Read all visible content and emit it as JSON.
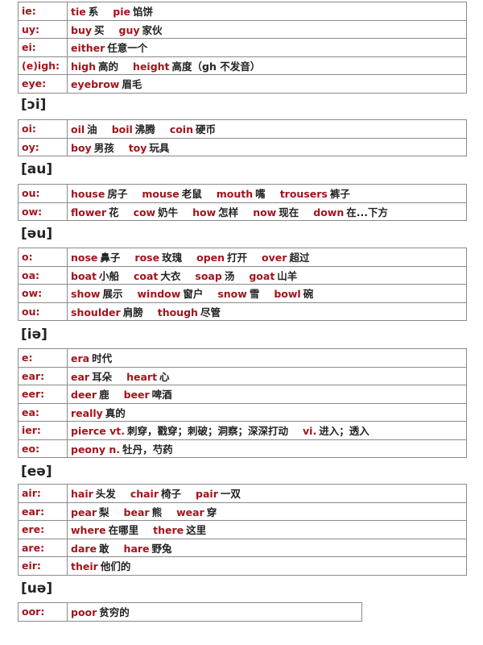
{
  "accent_color": "#a3141c",
  "sections": [
    {
      "heading": "",
      "rows": [
        {
          "key": "ie:",
          "words": [
            {
              "en": "tie",
              "zh": "系"
            },
            {
              "en": "pie",
              "zh": "馅饼"
            }
          ]
        },
        {
          "key": "uy:",
          "words": [
            {
              "en": "buy",
              "zh": "买"
            },
            {
              "en": "guy",
              "zh": "家伙"
            }
          ]
        },
        {
          "key": "ei:",
          "words": [
            {
              "en": "either",
              "zh": "任意一个"
            }
          ]
        },
        {
          "key": "(e)igh:",
          "words": [
            {
              "en": "high",
              "zh": "高的"
            },
            {
              "en": "height",
              "zh": "高度（gh 不发音）"
            }
          ]
        },
        {
          "key": "eye:",
          "words": [
            {
              "en": "eyebrow",
              "zh": "眉毛"
            }
          ]
        }
      ]
    },
    {
      "heading": "[ɔi]",
      "rows": [
        {
          "key": "oi:",
          "words": [
            {
              "en": "oil",
              "zh": "油"
            },
            {
              "en": "boil",
              "zh": "沸腾"
            },
            {
              "en": "coin",
              "zh": "硬币"
            }
          ]
        },
        {
          "key": "oy:",
          "words": [
            {
              "en": "boy",
              "zh": "男孩"
            },
            {
              "en": "toy",
              "zh": "玩具"
            }
          ]
        }
      ]
    },
    {
      "heading": "[au]",
      "rows": [
        {
          "key": "ou:",
          "words": [
            {
              "en": "house",
              "zh": "房子"
            },
            {
              "en": "mouse",
              "zh": "老鼠"
            },
            {
              "en": "mouth",
              "zh": "嘴"
            },
            {
              "en": "trousers",
              "zh": "裤子"
            }
          ]
        },
        {
          "key": "ow:",
          "words": [
            {
              "en": "flower",
              "zh": "花"
            },
            {
              "en": "cow",
              "zh": "奶牛"
            },
            {
              "en": "how",
              "zh": "怎样"
            },
            {
              "en": "now",
              "zh": "现在"
            },
            {
              "en": "down",
              "zh": "在...下方"
            }
          ]
        }
      ]
    },
    {
      "heading": "[əu]",
      "rows": [
        {
          "key": "o:",
          "words": [
            {
              "en": "nose",
              "zh": "鼻子"
            },
            {
              "en": "rose",
              "zh": "玫瑰"
            },
            {
              "en": "open",
              "zh": "打开"
            },
            {
              "en": "over",
              "zh": "超过"
            }
          ]
        },
        {
          "key": "oa:",
          "words": [
            {
              "en": "boat",
              "zh": "小船"
            },
            {
              "en": "coat",
              "zh": "大衣"
            },
            {
              "en": "soap",
              "zh": "汤"
            },
            {
              "en": "goat",
              "zh": "山羊"
            }
          ]
        },
        {
          "key": "ow:",
          "words": [
            {
              "en": "show",
              "zh": "展示"
            },
            {
              "en": "window",
              "zh": "窗户"
            },
            {
              "en": "snow",
              "zh": "雪"
            },
            {
              "en": "bowl",
              "zh": "碗"
            }
          ]
        },
        {
          "key": "ou:",
          "words": [
            {
              "en": "shoulder",
              "zh": "肩膀"
            },
            {
              "en": "though",
              "zh": "尽管"
            }
          ]
        }
      ]
    },
    {
      "heading": "[iə]",
      "rows": [
        {
          "key": "e:",
          "words": [
            {
              "en": "era",
              "zh": "时代"
            }
          ]
        },
        {
          "key": "ear:",
          "words": [
            {
              "en": "ear",
              "zh": "耳朵"
            },
            {
              "en": "heart",
              "zh": "心"
            }
          ]
        },
        {
          "key": "eer:",
          "words": [
            {
              "en": "deer",
              "zh": "鹿"
            },
            {
              "en": "beer",
              "zh": "啤酒"
            }
          ]
        },
        {
          "key": "ea:",
          "words": [
            {
              "en": "really",
              "zh": "真的"
            }
          ]
        },
        {
          "key": "ier:",
          "words": [
            {
              "en": "pierce vt.",
              "zh": "刺穿，戳穿；刺破；洞察；深深打动"
            },
            {
              "en": "vi.",
              "zh": "进入；透入"
            }
          ]
        },
        {
          "key": "eo:",
          "words": [
            {
              "en": "peony n.",
              "zh": "牡丹，芍药"
            }
          ]
        }
      ]
    },
    {
      "heading": "[eə]",
      "rows": [
        {
          "key": "air:",
          "words": [
            {
              "en": "hair",
              "zh": "头发"
            },
            {
              "en": "chair",
              "zh": "椅子"
            },
            {
              "en": "pair",
              "zh": "一双"
            }
          ]
        },
        {
          "key": "ear:",
          "words": [
            {
              "en": "pear",
              "zh": "梨"
            },
            {
              "en": "bear",
              "zh": "熊"
            },
            {
              "en": "wear",
              "zh": "穿"
            }
          ]
        },
        {
          "key": "ere:",
          "words": [
            {
              "en": "where",
              "zh": "在哪里"
            },
            {
              "en": "there",
              "zh": "这里"
            }
          ]
        },
        {
          "key": "are:",
          "words": [
            {
              "en": "dare",
              "zh": "敢"
            },
            {
              "en": "hare",
              "zh": "野兔"
            }
          ]
        },
        {
          "key": "eir:",
          "words": [
            {
              "en": "their",
              "zh": "他们的"
            }
          ]
        }
      ]
    },
    {
      "heading": "[uə]",
      "rows": [
        {
          "key": "oor:",
          "words": [
            {
              "en": "poor",
              "zh": "贫穷的"
            }
          ]
        }
      ]
    }
  ]
}
